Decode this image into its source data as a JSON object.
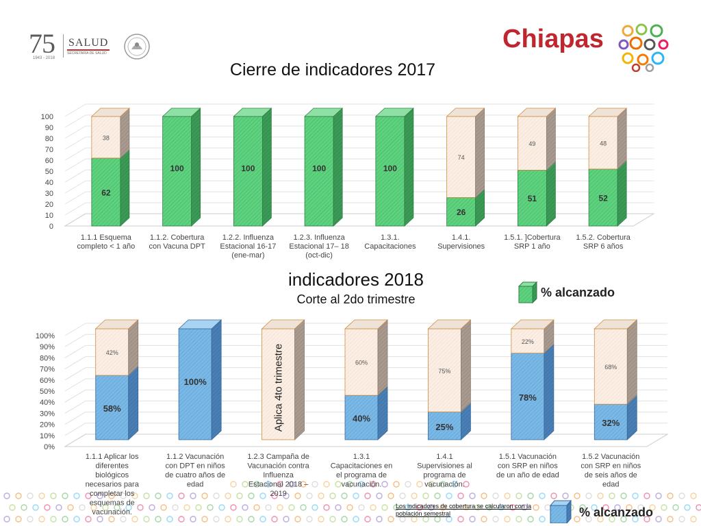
{
  "header": {
    "logo_number": "75",
    "logo_years": "1943 - 2018",
    "ministry": "SALUD",
    "ministry_sub": "SECRETARÍA DE SALUD",
    "region": "Chiapas"
  },
  "colors": {
    "achieved_2017": "#5ed27e",
    "achieved_2018": "#7ab8e6",
    "pending_fill": "#fbeee4",
    "pending_border": "#d08a3e",
    "region": "#c0262d"
  },
  "chart_data": [
    {
      "type": "bar",
      "stacked": true,
      "title": "Cierre de indicadores 2017",
      "categories": [
        "1.1.1 Esquema completo < 1 año",
        "1.1.2. Cobertura con Vacuna DPT",
        "1.2.2. Influenza Estacional 16-17 (ene-mar)",
        "1.2.3. Influenza Estacional 17– 18 (oct-dic)",
        "1.3.1. Capacitaciones",
        "1.4.1. Supervisiones",
        "1.5.1. ]Cobertura SRP 1 año",
        "1.5.2. Cobertura SRP 6 años"
      ],
      "series": [
        {
          "name": "% alcanzado",
          "values": [
            62,
            100,
            100,
            100,
            100,
            26,
            51,
            52
          ]
        },
        {
          "values": [
            38,
            null,
            null,
            null,
            null,
            74,
            49,
            48
          ]
        }
      ],
      "ylim": [
        0,
        100
      ],
      "yticks": [
        "0",
        "10",
        "20",
        "30",
        "40",
        "50",
        "60",
        "70",
        "80",
        "90",
        "100"
      ],
      "legend": "% alcanzado",
      "legend_position": "below-right"
    },
    {
      "type": "bar",
      "stacked": true,
      "title": "indicadores 2018",
      "subtitle": "Corte al 2do trimestre",
      "categories": [
        "1.1.1 Aplicar los diferentes biológicos necesarios para completar los esquemas de vacunación.",
        "1.1.2 Vacunación con DPT en niños de cuatro años de edad",
        "1.2.3 Campaña de Vacunación contra Influenza Estacional 2018 – 2019",
        "1.3.1 Capacitaciones en el programa de vacunación.",
        "1.4.1 Supervisiones al programa de vacunación.",
        "1.5.1 Vacunación con SRP en niños de un año de edad",
        "1.5.2 Vacunación con SRP en niños de seis años de edad"
      ],
      "series": [
        {
          "name": "% alcanzado",
          "values": [
            58,
            100,
            null,
            40,
            25,
            78,
            32
          ]
        },
        {
          "values": [
            42,
            null,
            100,
            60,
            75,
            22,
            68
          ]
        }
      ],
      "labels_achieved": [
        "58%",
        "100%",
        "",
        "40%",
        "25%",
        "78%",
        "32%"
      ],
      "labels_pending": [
        "42%",
        "",
        "",
        "60%",
        "75%",
        "22%",
        "68%"
      ],
      "special_label": "Aplica 4to trimestre",
      "ylim": [
        0,
        100
      ],
      "yticks": [
        "0%",
        "10%",
        "20%",
        "30%",
        "40%",
        "50%",
        "60%",
        "70%",
        "80%",
        "90%",
        "100%"
      ],
      "legend": "% alcanzado",
      "legend_position": "bottom-right",
      "footnote": "Los indicadores de cobertura se calcularon con la población semestral"
    }
  ]
}
